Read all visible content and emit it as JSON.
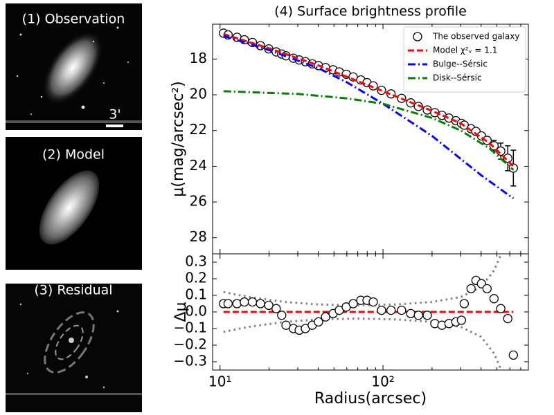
{
  "image_panels": [
    {
      "label": "(1) Observation"
    },
    {
      "label": "(2) Model"
    },
    {
      "label": "(3) Residual"
    }
  ],
  "scale_bar_label": "3'",
  "chart_data": [
    {
      "type": "line",
      "title": "(4) Surface brightness profile",
      "ylabel": "μ(mag/arcsec²)",
      "xscale": "log",
      "xlim": [
        9,
        780
      ],
      "ylim": [
        16.05,
        28.9
      ],
      "y_inverted": true,
      "yticks": [
        18,
        20,
        22,
        24,
        26,
        28
      ],
      "legend": "upper right",
      "series": [
        {
          "name": "The observed galaxy",
          "kind": "markers",
          "color": "#000000",
          "x": [
            10.5,
            11.2,
            12.7,
            14.1,
            15.8,
            17.7,
            19.9,
            22.1,
            23.9,
            25.4,
            28.2,
            30.6,
            33.4,
            36.8,
            40.2,
            44.4,
            49.4,
            53.9,
            59.5,
            65.6,
            73.1,
            79.8,
            87.1,
            97.9,
            112,
            130,
            148,
            165,
            187,
            208,
            230,
            254,
            280,
            303,
            315,
            347,
            372,
            402,
            435,
            480,
            528,
            583,
            631
          ],
          "values": [
            16.55,
            16.65,
            16.78,
            16.92,
            17.07,
            17.25,
            17.43,
            17.6,
            17.72,
            17.82,
            17.95,
            18.05,
            18.15,
            18.27,
            18.37,
            18.48,
            18.6,
            18.72,
            18.85,
            19.0,
            19.17,
            19.32,
            19.5,
            19.75,
            19.95,
            20.2,
            20.45,
            20.65,
            20.85,
            21.0,
            21.15,
            21.3,
            21.45,
            21.6,
            21.7,
            21.9,
            22.05,
            22.3,
            22.55,
            22.85,
            23.15,
            23.55,
            24.1
          ],
          "errors": [
            0.03,
            0.03,
            0.03,
            0.03,
            0.03,
            0.03,
            0.03,
            0.03,
            0.03,
            0.03,
            0.03,
            0.03,
            0.03,
            0.03,
            0.03,
            0.03,
            0.03,
            0.03,
            0.03,
            0.03,
            0.03,
            0.03,
            0.03,
            0.03,
            0.03,
            0.03,
            0.03,
            0.03,
            0.03,
            0.03,
            0.03,
            0.03,
            0.03,
            0.03,
            0.03,
            0.03,
            0.03,
            0.12,
            0.2,
            0.3,
            0.45,
            0.7,
            1.0
          ]
        },
        {
          "name": "Model χ²ᵥ = 1.1",
          "kind": "line",
          "dash": "dashed",
          "color": "#ff0000",
          "x": [
            10.5,
            20,
            40,
            100,
            200,
            300,
            450,
            631
          ],
          "values": [
            16.6,
            17.4,
            18.35,
            19.8,
            20.9,
            21.6,
            22.7,
            24.0
          ]
        },
        {
          "name": "Bulge--Sérsic",
          "kind": "line",
          "dash": "dashdot",
          "color": "#0000ff",
          "x": [
            10.5,
            20,
            40,
            60,
            100,
            200,
            400,
            631
          ],
          "values": [
            16.7,
            17.5,
            18.5,
            19.3,
            20.5,
            22.3,
            24.5,
            25.8
          ]
        },
        {
          "name": "Disk--Sérsic",
          "kind": "line",
          "dash": "dashdot",
          "color": "#008000",
          "x": [
            10.5,
            30,
            60,
            100,
            200,
            300,
            450,
            631
          ],
          "values": [
            19.8,
            19.95,
            20.2,
            20.5,
            21.3,
            22.0,
            23.0,
            24.2
          ]
        }
      ]
    },
    {
      "type": "line",
      "ylabel": "Δμ",
      "xlabel": "Radius(arcsec)",
      "xscale": "log",
      "xlim": [
        9,
        780
      ],
      "ylim": [
        -0.35,
        0.35
      ],
      "xticks": [
        {
          "value": 10,
          "label": "10¹"
        },
        {
          "value": 100,
          "label": "10²"
        }
      ],
      "xminor_ticks": [
        20,
        30,
        40,
        50,
        60,
        70,
        80,
        90,
        200,
        300,
        400,
        500,
        600,
        700
      ],
      "yticks": [
        {
          "value": -0.3,
          "label": "−0.3"
        },
        {
          "value": -0.2,
          "label": "−0.2"
        },
        {
          "value": -0.1,
          "label": "−0.1"
        },
        {
          "value": 0,
          "label": "0.0"
        },
        0.1,
        0.2,
        0.3
      ],
      "series": [
        {
          "kind": "line",
          "dash": "dotted",
          "color": "#808080",
          "x": [
            10.5,
            15,
            25,
            40,
            70,
            120,
            200,
            300,
            400,
            480,
            560
          ],
          "values": [
            0.12,
            0.09,
            0.06,
            0.045,
            0.04,
            0.045,
            0.06,
            0.09,
            0.15,
            0.25,
            0.4
          ]
        },
        {
          "kind": "line",
          "dash": "dotted",
          "color": "#808080",
          "x": [
            10.5,
            15,
            25,
            40,
            70,
            120,
            200,
            300,
            400,
            480,
            560
          ],
          "values": [
            -0.12,
            -0.09,
            -0.06,
            -0.045,
            -0.04,
            -0.045,
            -0.06,
            -0.09,
            -0.15,
            -0.25,
            -0.4
          ]
        },
        {
          "kind": "line",
          "dash": "dashed",
          "color": "#ff0000",
          "x": [
            10.5,
            631
          ],
          "values": [
            0,
            0
          ]
        },
        {
          "kind": "markers",
          "color": "#000000",
          "x": [
            10.5,
            11.2,
            12.7,
            14.1,
            15.8,
            17.7,
            19.9,
            22.1,
            23.9,
            25.4,
            28.2,
            30.6,
            33.4,
            36.8,
            40.2,
            44.4,
            49.4,
            53.9,
            59.5,
            65.6,
            73.1,
            79.8,
            87.1,
            97.9,
            112,
            130,
            148,
            165,
            187,
            208,
            230,
            254,
            280,
            303,
            315,
            347,
            372,
            402,
            435,
            480,
            528,
            583,
            631
          ],
          "values": [
            0.05,
            0.05,
            0.05,
            0.06,
            0.06,
            0.05,
            0.04,
            0.02,
            -0.02,
            -0.08,
            -0.1,
            -0.11,
            -0.1,
            -0.08,
            -0.06,
            -0.03,
            -0.01,
            0.01,
            0.03,
            0.05,
            0.07,
            0.07,
            0.06,
            0.01,
            0.01,
            0.01,
            -0.01,
            -0.02,
            -0.02,
            -0.07,
            -0.08,
            -0.07,
            -0.06,
            -0.05,
            0.05,
            0.14,
            0.19,
            0.17,
            0.14,
            0.08,
            0.02,
            -0.04,
            -0.26
          ]
        }
      ]
    }
  ]
}
